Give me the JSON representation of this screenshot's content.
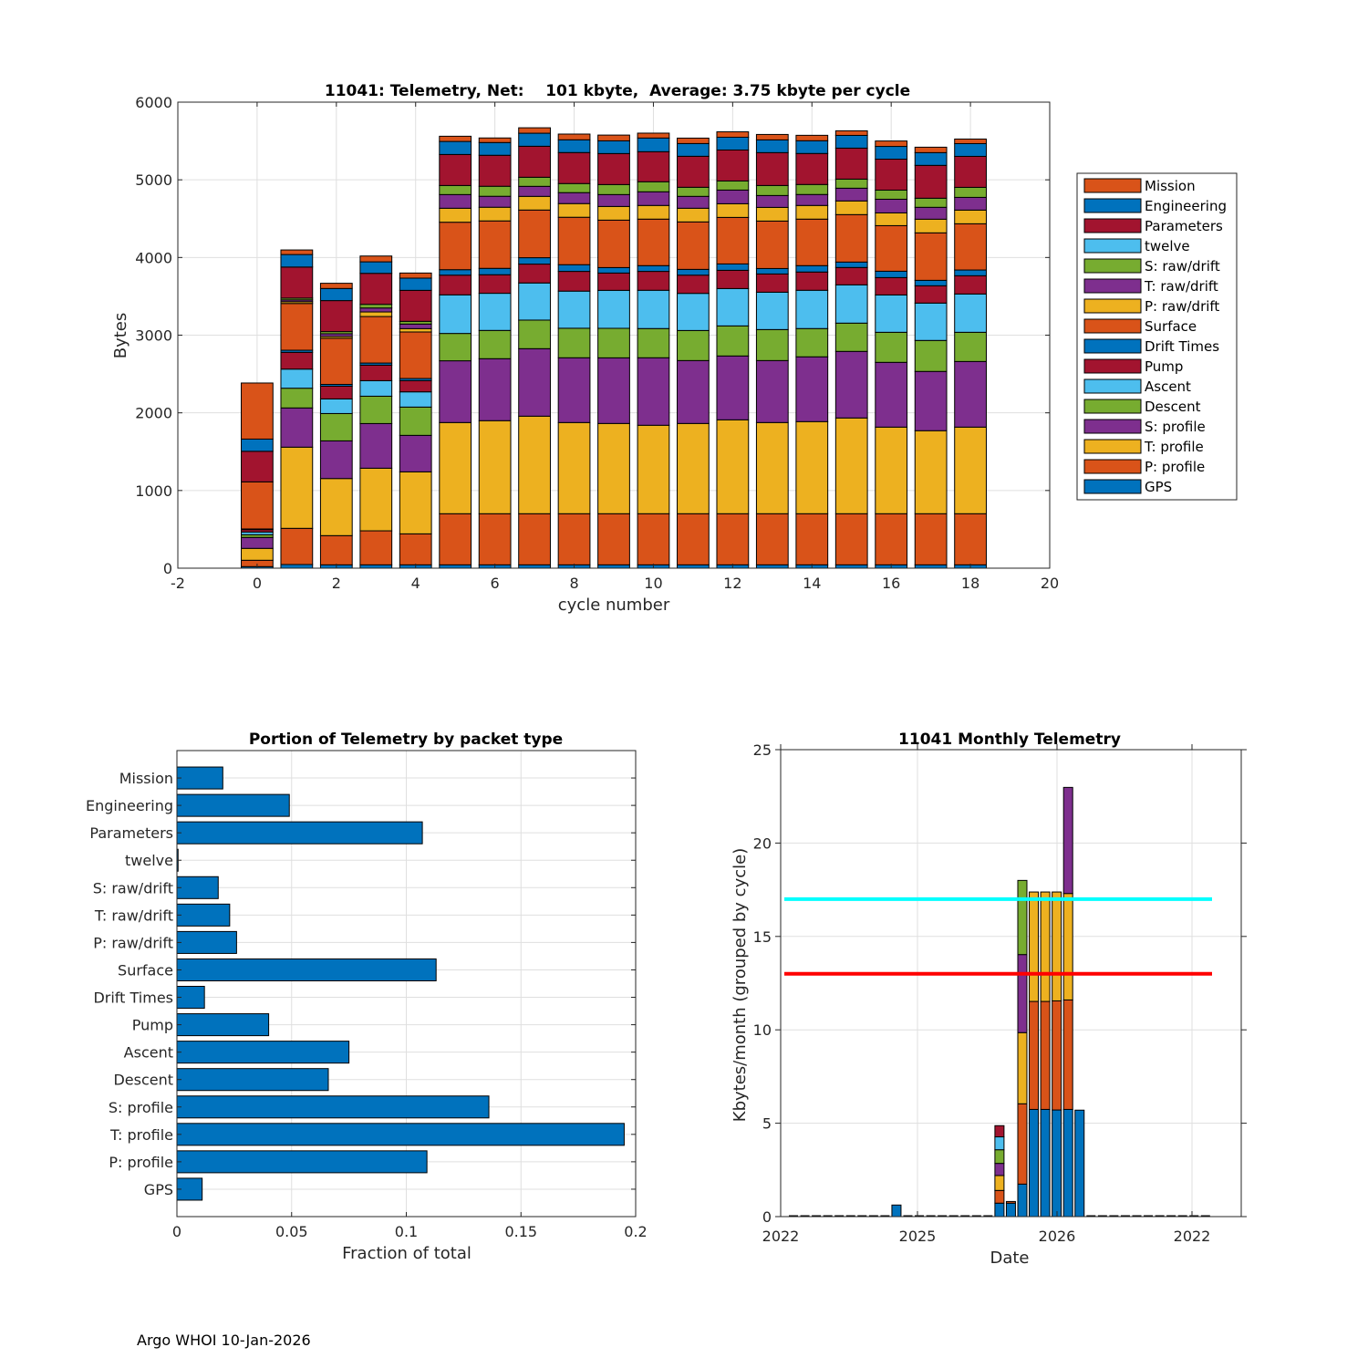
{
  "footer": "Argo WHOI 10-Jan-2026",
  "colors": {
    "Mission": "#D95319",
    "Engineering": "#0072BD",
    "Parameters": "#A2142F",
    "twelve": "#4DBEEE",
    "S: raw/drift": "#77AC30",
    "T: raw/drift": "#7E2F8E",
    "P: raw/drift": "#EDB120",
    "Surface": "#D95319",
    "Drift Times": "#0072BD",
    "Pump": "#A2142F",
    "Ascent": "#4DBEEE",
    "Descent": "#77AC30",
    "S: profile": "#7E2F8E",
    "T: profile": "#EDB120",
    "P: profile": "#D95319",
    "GPS": "#0072BD",
    "bar_blue": "#0072BD",
    "line_cyan": "#00FFFF",
    "line_red": "#FF0000"
  },
  "chart_data": [
    {
      "type": "bar",
      "stacked": true,
      "title": "11041: Telemetry, Net:    101 kbyte,  Average: 3.75 kbyte per cycle",
      "xlabel": "cycle number",
      "ylabel": "Bytes",
      "xlim": [
        -2,
        20
      ],
      "ylim": [
        0,
        6000
      ],
      "xticks": [
        "-2",
        "0",
        "2",
        "4",
        "6",
        "8",
        "10",
        "12",
        "14",
        "16",
        "18",
        "20"
      ],
      "yticks": [
        "0",
        "1000",
        "2000",
        "3000",
        "4000",
        "5000",
        "6000"
      ],
      "grid": true,
      "legend_position": "outside-right",
      "categories": [
        0,
        1,
        2,
        3,
        4,
        5,
        6,
        7,
        8,
        9,
        10,
        11,
        12,
        13,
        14,
        15,
        16,
        17,
        18
      ],
      "legend": [
        "Mission",
        "Engineering",
        "Parameters",
        "twelve",
        "S: raw/drift",
        "T: raw/drift",
        "P: raw/drift",
        "Surface",
        "Drift Times",
        "Pump",
        "Ascent",
        "Descent",
        "S: profile",
        "T: profile",
        "P: profile",
        "GPS"
      ],
      "series": [
        {
          "name": "GPS",
          "values": [
            20,
            47,
            43,
            43,
            43,
            43,
            43,
            43,
            43,
            43,
            43,
            43,
            43,
            43,
            43,
            43,
            43,
            43,
            43
          ]
        },
        {
          "name": "P: profile",
          "values": [
            82,
            466,
            376,
            438,
            399,
            658,
            658,
            658,
            658,
            658,
            658,
            658,
            658,
            658,
            658,
            658,
            658,
            658,
            658
          ]
        },
        {
          "name": "T: profile",
          "values": [
            153,
            1045,
            735,
            806,
            798,
            1174,
            1198,
            1256,
            1174,
            1162,
            1139,
            1162,
            1209,
            1174,
            1186,
            1233,
            1115,
            1069,
            1115
          ]
        },
        {
          "name": "S: profile",
          "values": [
            141,
            505,
            485,
            575,
            470,
            795,
            798,
            869,
            834,
            845,
            869,
            810,
            822,
            798,
            834,
            857,
            834,
            763,
            845
          ]
        },
        {
          "name": "Descent",
          "values": [
            35,
            254,
            352,
            352,
            364,
            352,
            364,
            368,
            380,
            380,
            376,
            387,
            387,
            399,
            364,
            364,
            387,
            399,
            376
          ]
        },
        {
          "name": "Ascent",
          "values": [
            35,
            246,
            188,
            200,
            196,
            497,
            478,
            478,
            478,
            489,
            493,
            478,
            481,
            481,
            493,
            493,
            481,
            481,
            493
          ]
        },
        {
          "name": "Pump",
          "values": [
            31,
            216,
            164,
            200,
            145,
            254,
            239,
            243,
            254,
            223,
            243,
            235,
            235,
            235,
            235,
            223,
            223,
            223,
            235
          ]
        },
        {
          "name": "Drift Times",
          "values": [
            8,
            27,
            23,
            27,
            27,
            70,
            82,
            82,
            86,
            70,
            74,
            74,
            82,
            70,
            82,
            70,
            82,
            70,
            74
          ]
        },
        {
          "name": "Surface",
          "values": [
            606,
            602,
            594,
            599,
            599,
            611,
            611,
            614,
            611,
            611,
            599,
            611,
            599,
            611,
            599,
            611,
            587,
            611,
            595
          ]
        },
        {
          "name": "P: raw/drift",
          "values": [
            0,
            23,
            23,
            59,
            43,
            180,
            176,
            176,
            176,
            176,
            176,
            176,
            176,
            176,
            176,
            176,
            164,
            176,
            176
          ]
        },
        {
          "name": "T: raw/drift",
          "values": [
            0,
            23,
            35,
            51,
            59,
            176,
            141,
            129,
            141,
            153,
            176,
            153,
            176,
            153,
            141,
            164,
            176,
            153,
            164
          ]
        },
        {
          "name": "S: raw/drift",
          "values": [
            0,
            23,
            28,
            47,
            35,
            117,
            129,
            117,
            117,
            129,
            129,
            117,
            117,
            129,
            129,
            117,
            117,
            117,
            129
          ]
        },
        {
          "name": "twelve",
          "values": [
            0,
            0,
            0,
            0,
            0,
            0,
            0,
            0,
            0,
            0,
            0,
            0,
            0,
            0,
            0,
            0,
            0,
            0,
            0
          ]
        },
        {
          "name": "Parameters",
          "values": [
            394,
            400,
            399,
            399,
            399,
            399,
            399,
            399,
            399,
            399,
            387,
            399,
            399,
            423,
            399,
            399,
            399,
            423,
            399
          ]
        },
        {
          "name": "Engineering",
          "values": [
            157,
            161,
            156,
            148,
            157,
            168,
            164,
            168,
            164,
            164,
            176,
            164,
            164,
            164,
            164,
            164,
            164,
            164,
            164
          ]
        },
        {
          "name": "Mission",
          "values": [
            722,
            59,
            67,
            75,
            66,
            67,
            59,
            70,
            74,
            74,
            63,
            70,
            70,
            70,
            70,
            59,
            70,
            70,
            59
          ]
        }
      ]
    },
    {
      "type": "bar",
      "orientation": "horizontal",
      "title": "Portion of Telemetry by packet type",
      "xlabel": "Fraction of total",
      "ylabel": "",
      "xlim": [
        0,
        0.2
      ],
      "xticks": [
        "0",
        "0.05",
        "0.1",
        "0.15",
        "0.2"
      ],
      "grid": true,
      "categories": [
        "Mission",
        "Engineering",
        "Parameters",
        "twelve",
        "S: raw/drift",
        "T: raw/drift",
        "P: raw/drift",
        "Surface",
        "Drift Times",
        "Pump",
        "Ascent",
        "Descent",
        "S: profile",
        "T: profile",
        "P: profile",
        "GPS"
      ],
      "values": [
        0.02,
        0.049,
        0.107,
        0.0005,
        0.018,
        0.023,
        0.026,
        0.113,
        0.012,
        0.04,
        0.075,
        0.066,
        0.136,
        0.195,
        0.109,
        0.011
      ]
    },
    {
      "type": "bar",
      "stacked": true,
      "title": "11041 Monthly Telemetry",
      "xlabel": "Date",
      "ylabel": "Kbytes/month (grouped by cycle)",
      "ylim": [
        0,
        25
      ],
      "yticks": [
        "0",
        "5",
        "10",
        "15",
        "20",
        "25"
      ],
      "xticks": [
        "2022",
        "2025",
        "2026",
        "2022"
      ],
      "grid": true,
      "month_count": 37,
      "bars": [
        {
          "month_index": 9,
          "segments": [
            {
              "name": "GPS",
              "value": 0.62
            }
          ]
        },
        {
          "month_index": 18,
          "segments": [
            {
              "name": "GPS",
              "value": 0.72
            },
            {
              "name": "P: profile",
              "value": 0.68
            },
            {
              "name": "T: profile",
              "value": 0.8
            },
            {
              "name": "S: profile",
              "value": 0.65
            },
            {
              "name": "Descent",
              "value": 0.73
            },
            {
              "name": "Ascent",
              "value": 0.69
            },
            {
              "name": "Pump",
              "value": 0.6
            }
          ]
        },
        {
          "month_index": 19,
          "segments": [
            {
              "name": "GPS",
              "value": 0.72
            },
            {
              "name": "P: profile",
              "value": 0.09
            }
          ]
        },
        {
          "month_index": 20,
          "segments": [
            {
              "name": "GPS",
              "value": 1.74
            },
            {
              "name": "P: profile",
              "value": 4.3
            },
            {
              "name": "T: profile",
              "value": 3.81
            },
            {
              "name": "S: profile",
              "value": 4.18
            },
            {
              "name": "Descent",
              "value": 3.97
            }
          ]
        },
        {
          "month_index": 21,
          "segments": [
            {
              "name": "GPS",
              "value": 5.74
            },
            {
              "name": "P: profile",
              "value": 5.78
            },
            {
              "name": "T: profile",
              "value": 5.86
            }
          ]
        },
        {
          "month_index": 22,
          "segments": [
            {
              "name": "GPS",
              "value": 5.74
            },
            {
              "name": "P: profile",
              "value": 5.78
            },
            {
              "name": "T: profile",
              "value": 5.86
            }
          ]
        },
        {
          "month_index": 23,
          "segments": [
            {
              "name": "GPS",
              "value": 5.71
            },
            {
              "name": "P: profile",
              "value": 5.84
            },
            {
              "name": "T: profile",
              "value": 5.83
            }
          ]
        },
        {
          "month_index": 24,
          "segments": [
            {
              "name": "GPS",
              "value": 5.74
            },
            {
              "name": "P: profile",
              "value": 5.86
            },
            {
              "name": "T: profile",
              "value": 5.7
            },
            {
              "name": "S: profile",
              "value": 5.68
            }
          ]
        },
        {
          "month_index": 25,
          "segments": [
            {
              "name": "GPS",
              "value": 5.7
            }
          ]
        }
      ],
      "hlines": [
        {
          "name": "upper-threshold",
          "value": 17,
          "color": "#00FFFF"
        },
        {
          "name": "lower-threshold",
          "value": 13,
          "color": "#FF0000"
        }
      ]
    }
  ]
}
